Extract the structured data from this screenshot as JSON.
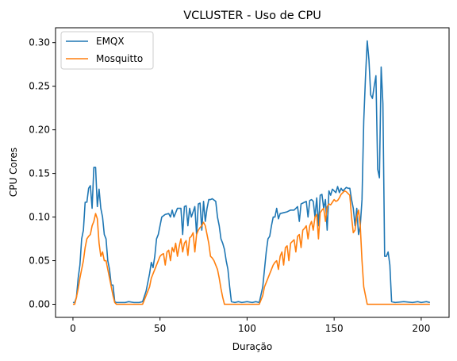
{
  "chart_data": {
    "type": "line",
    "title": "VCLUSTER - Uso de CPU",
    "xlabel": "Duração",
    "ylabel": "CPU Cores",
    "xlim": [
      -10,
      216
    ],
    "ylim": [
      -0.015,
      0.317
    ],
    "xticks": [
      0,
      50,
      100,
      150,
      200
    ],
    "xtick_labels": [
      "0",
      "50",
      "100",
      "150",
      "200"
    ],
    "yticks": [
      0.0,
      0.05,
      0.1,
      0.15,
      0.2,
      0.25,
      0.3
    ],
    "ytick_labels": [
      "0.00",
      "0.05",
      "0.10",
      "0.15",
      "0.20",
      "0.25",
      "0.30"
    ],
    "grid": false,
    "legend_position": "top-left",
    "series": [
      {
        "name": "EMQX",
        "color": "#1f77b4",
        "points": [
          [
            0,
            0.002
          ],
          [
            1,
            0.002
          ],
          [
            2,
            0.008
          ],
          [
            3,
            0.03
          ],
          [
            4,
            0.045
          ],
          [
            5,
            0.075
          ],
          [
            6,
            0.085
          ],
          [
            7,
            0.117
          ],
          [
            8,
            0.117
          ],
          [
            9,
            0.133
          ],
          [
            10,
            0.136
          ],
          [
            11,
            0.11
          ],
          [
            12,
            0.157
          ],
          [
            13,
            0.157
          ],
          [
            14,
            0.112
          ],
          [
            15,
            0.132
          ],
          [
            16,
            0.11
          ],
          [
            17,
            0.1
          ],
          [
            18,
            0.08
          ],
          [
            19,
            0.075
          ],
          [
            20,
            0.05
          ],
          [
            21,
            0.04
          ],
          [
            22,
            0.022
          ],
          [
            23,
            0.022
          ],
          [
            24,
            0.003
          ],
          [
            25,
            0.002
          ],
          [
            30,
            0.002
          ],
          [
            32,
            0.003
          ],
          [
            35,
            0.002
          ],
          [
            38,
            0.002
          ],
          [
            40,
            0.003
          ],
          [
            42,
            0.015
          ],
          [
            44,
            0.035
          ],
          [
            45,
            0.048
          ],
          [
            46,
            0.042
          ],
          [
            47,
            0.055
          ],
          [
            48,
            0.075
          ],
          [
            49,
            0.08
          ],
          [
            50,
            0.09
          ],
          [
            51,
            0.1
          ],
          [
            53,
            0.103
          ],
          [
            55,
            0.104
          ],
          [
            56,
            0.1
          ],
          [
            57,
            0.108
          ],
          [
            58,
            0.1
          ],
          [
            60,
            0.11
          ],
          [
            62,
            0.11
          ],
          [
            63,
            0.08
          ],
          [
            64,
            0.112
          ],
          [
            65,
            0.113
          ],
          [
            66,
            0.09
          ],
          [
            67,
            0.11
          ],
          [
            68,
            0.1
          ],
          [
            70,
            0.112
          ],
          [
            71,
            0.08
          ],
          [
            72,
            0.115
          ],
          [
            73,
            0.116
          ],
          [
            74,
            0.085
          ],
          [
            75,
            0.118
          ],
          [
            76,
            0.095
          ],
          [
            77,
            0.11
          ],
          [
            78,
            0.12
          ],
          [
            79,
            0.12
          ],
          [
            80,
            0.121
          ],
          [
            82,
            0.118
          ],
          [
            83,
            0.1
          ],
          [
            84,
            0.09
          ],
          [
            85,
            0.075
          ],
          [
            86,
            0.07
          ],
          [
            87,
            0.063
          ],
          [
            88,
            0.05
          ],
          [
            89,
            0.04
          ],
          [
            90,
            0.02
          ],
          [
            91,
            0.003
          ],
          [
            93,
            0.002
          ],
          [
            95,
            0.003
          ],
          [
            97,
            0.002
          ],
          [
            100,
            0.003
          ],
          [
            103,
            0.002
          ],
          [
            105,
            0.003
          ],
          [
            107,
            0.002
          ],
          [
            109,
            0.02
          ],
          [
            110,
            0.04
          ],
          [
            111,
            0.06
          ],
          [
            112,
            0.075
          ],
          [
            113,
            0.078
          ],
          [
            114,
            0.09
          ],
          [
            115,
            0.1
          ],
          [
            116,
            0.1
          ],
          [
            117,
            0.11
          ],
          [
            118,
            0.098
          ],
          [
            119,
            0.104
          ],
          [
            121,
            0.105
          ],
          [
            123,
            0.106
          ],
          [
            125,
            0.108
          ],
          [
            127,
            0.108
          ],
          [
            129,
            0.112
          ],
          [
            130,
            0.095
          ],
          [
            131,
            0.115
          ],
          [
            133,
            0.117
          ],
          [
            134,
            0.118
          ],
          [
            135,
            0.1
          ],
          [
            136,
            0.119
          ],
          [
            137,
            0.12
          ],
          [
            138,
            0.118
          ],
          [
            139,
            0.1
          ],
          [
            140,
            0.122
          ],
          [
            141,
            0.09
          ],
          [
            142,
            0.125
          ],
          [
            143,
            0.126
          ],
          [
            144,
            0.11
          ],
          [
            145,
            0.12
          ],
          [
            146,
            0.085
          ],
          [
            147,
            0.13
          ],
          [
            148,
            0.125
          ],
          [
            149,
            0.132
          ],
          [
            150,
            0.13
          ],
          [
            151,
            0.128
          ],
          [
            152,
            0.135
          ],
          [
            153,
            0.128
          ],
          [
            154,
            0.133
          ],
          [
            155,
            0.13
          ],
          [
            156,
            0.132
          ],
          [
            157,
            0.134
          ],
          [
            158,
            0.133
          ],
          [
            159,
            0.133
          ],
          [
            160,
            0.12
          ],
          [
            161,
            0.11
          ],
          [
            162,
            0.09
          ],
          [
            163,
            0.11
          ],
          [
            164,
            0.08
          ],
          [
            165,
            0.09
          ],
          [
            166,
            0.12
          ],
          [
            167,
            0.21
          ],
          [
            168,
            0.26
          ],
          [
            169,
            0.302
          ],
          [
            170,
            0.28
          ],
          [
            171,
            0.24
          ],
          [
            172,
            0.236
          ],
          [
            173,
            0.25
          ],
          [
            174,
            0.262
          ],
          [
            175,
            0.155
          ],
          [
            176,
            0.145
          ],
          [
            177,
            0.272
          ],
          [
            178,
            0.23
          ],
          [
            179,
            0.055
          ],
          [
            180,
            0.055
          ],
          [
            181,
            0.06
          ],
          [
            182,
            0.045
          ],
          [
            183,
            0.003
          ],
          [
            185,
            0.002
          ],
          [
            190,
            0.003
          ],
          [
            195,
            0.002
          ],
          [
            198,
            0.003
          ],
          [
            200,
            0.002
          ],
          [
            203,
            0.003
          ],
          [
            205,
            0.002
          ]
        ]
      },
      {
        "name": "Mosquitto",
        "color": "#ff7f0e",
        "points": [
          [
            0,
            0.0
          ],
          [
            1,
            0.0
          ],
          [
            2,
            0.008
          ],
          [
            3,
            0.018
          ],
          [
            4,
            0.03
          ],
          [
            5,
            0.04
          ],
          [
            6,
            0.05
          ],
          [
            7,
            0.065
          ],
          [
            8,
            0.075
          ],
          [
            9,
            0.078
          ],
          [
            10,
            0.08
          ],
          [
            11,
            0.09
          ],
          [
            12,
            0.095
          ],
          [
            13,
            0.104
          ],
          [
            14,
            0.098
          ],
          [
            15,
            0.07
          ],
          [
            16,
            0.055
          ],
          [
            17,
            0.06
          ],
          [
            18,
            0.05
          ],
          [
            19,
            0.05
          ],
          [
            20,
            0.04
          ],
          [
            21,
            0.03
          ],
          [
            22,
            0.02
          ],
          [
            23,
            0.01
          ],
          [
            24,
            0.002
          ],
          [
            25,
            0.0
          ],
          [
            30,
            0.0
          ],
          [
            35,
            0.0
          ],
          [
            38,
            0.0
          ],
          [
            40,
            0.0
          ],
          [
            42,
            0.01
          ],
          [
            44,
            0.02
          ],
          [
            45,
            0.03
          ],
          [
            46,
            0.035
          ],
          [
            47,
            0.04
          ],
          [
            48,
            0.045
          ],
          [
            49,
            0.05
          ],
          [
            50,
            0.055
          ],
          [
            51,
            0.057
          ],
          [
            52,
            0.058
          ],
          [
            53,
            0.045
          ],
          [
            54,
            0.06
          ],
          [
            55,
            0.062
          ],
          [
            56,
            0.05
          ],
          [
            57,
            0.065
          ],
          [
            58,
            0.06
          ],
          [
            59,
            0.07
          ],
          [
            60,
            0.055
          ],
          [
            61,
            0.066
          ],
          [
            62,
            0.075
          ],
          [
            63,
            0.06
          ],
          [
            64,
            0.07
          ],
          [
            65,
            0.073
          ],
          [
            66,
            0.056
          ],
          [
            67,
            0.076
          ],
          [
            68,
            0.078
          ],
          [
            69,
            0.082
          ],
          [
            70,
            0.06
          ],
          [
            71,
            0.08
          ],
          [
            72,
            0.085
          ],
          [
            73,
            0.088
          ],
          [
            74,
            0.09
          ],
          [
            75,
            0.094
          ],
          [
            76,
            0.09
          ],
          [
            77,
            0.08
          ],
          [
            78,
            0.07
          ],
          [
            79,
            0.055
          ],
          [
            80,
            0.053
          ],
          [
            81,
            0.05
          ],
          [
            82,
            0.045
          ],
          [
            83,
            0.04
          ],
          [
            84,
            0.03
          ],
          [
            85,
            0.018
          ],
          [
            86,
            0.008
          ],
          [
            87,
            0.0
          ],
          [
            90,
            0.0
          ],
          [
            95,
            0.0
          ],
          [
            100,
            0.0
          ],
          [
            105,
            0.0
          ],
          [
            107,
            0.0
          ],
          [
            109,
            0.01
          ],
          [
            110,
            0.02
          ],
          [
            111,
            0.025
          ],
          [
            112,
            0.03
          ],
          [
            113,
            0.035
          ],
          [
            114,
            0.04
          ],
          [
            115,
            0.045
          ],
          [
            116,
            0.048
          ],
          [
            117,
            0.05
          ],
          [
            118,
            0.04
          ],
          [
            119,
            0.055
          ],
          [
            120,
            0.06
          ],
          [
            121,
            0.045
          ],
          [
            122,
            0.065
          ],
          [
            123,
            0.067
          ],
          [
            124,
            0.05
          ],
          [
            125,
            0.07
          ],
          [
            126,
            0.072
          ],
          [
            127,
            0.074
          ],
          [
            128,
            0.06
          ],
          [
            129,
            0.078
          ],
          [
            130,
            0.08
          ],
          [
            131,
            0.065
          ],
          [
            132,
            0.085
          ],
          [
            133,
            0.087
          ],
          [
            134,
            0.09
          ],
          [
            135,
            0.075
          ],
          [
            136,
            0.09
          ],
          [
            137,
            0.095
          ],
          [
            138,
            0.085
          ],
          [
            139,
            0.1
          ],
          [
            140,
            0.103
          ],
          [
            141,
            0.075
          ],
          [
            142,
            0.105
          ],
          [
            143,
            0.108
          ],
          [
            144,
            0.11
          ],
          [
            145,
            0.095
          ],
          [
            146,
            0.112
          ],
          [
            147,
            0.115
          ],
          [
            148,
            0.114
          ],
          [
            149,
            0.117
          ],
          [
            150,
            0.12
          ],
          [
            151,
            0.118
          ],
          [
            152,
            0.119
          ],
          [
            153,
            0.122
          ],
          [
            154,
            0.126
          ],
          [
            155,
            0.128
          ],
          [
            156,
            0.13
          ],
          [
            157,
            0.129
          ],
          [
            158,
            0.127
          ],
          [
            159,
            0.125
          ],
          [
            160,
            0.1
          ],
          [
            161,
            0.082
          ],
          [
            162,
            0.085
          ],
          [
            163,
            0.1
          ],
          [
            164,
            0.108
          ],
          [
            165,
            0.09
          ],
          [
            166,
            0.05
          ],
          [
            167,
            0.02
          ],
          [
            168,
            0.01
          ],
          [
            169,
            0.0
          ],
          [
            175,
            0.0
          ],
          [
            180,
            0.0
          ],
          [
            185,
            0.0
          ],
          [
            190,
            0.0
          ],
          [
            195,
            0.0
          ],
          [
            200,
            0.0
          ],
          [
            205,
            0.0
          ]
        ]
      }
    ]
  }
}
